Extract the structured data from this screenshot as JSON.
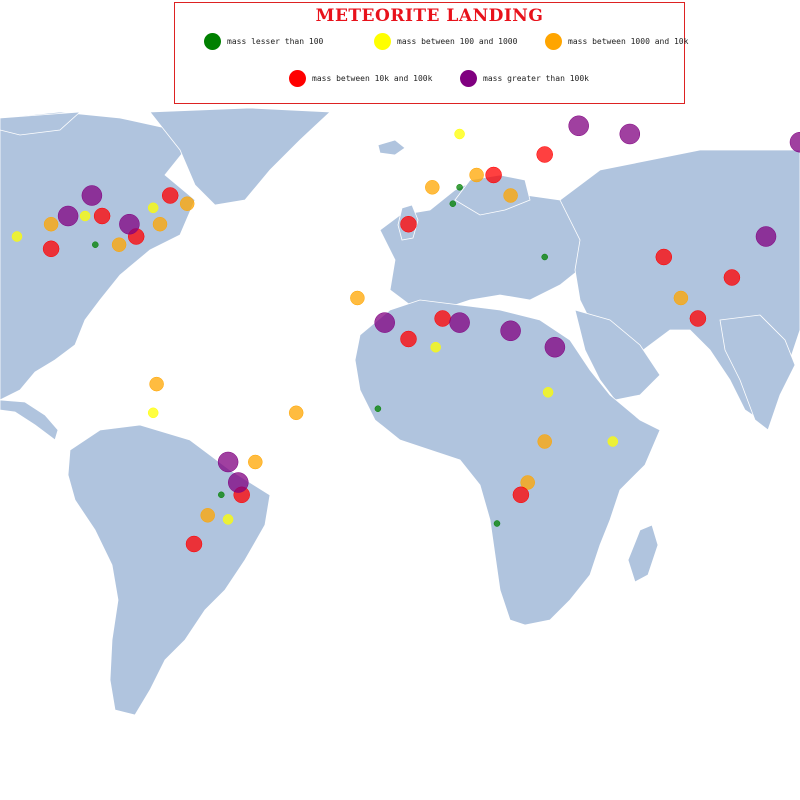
{
  "title": "METEORITE LANDING",
  "colors": {
    "land": "#b0c4de",
    "border": "#ffffff",
    "title": "#e8121b",
    "legend_border": "#dd2222"
  },
  "legend": [
    {
      "label": "mass lesser than 100",
      "color": "#008000"
    },
    {
      "label": "mass between 100 and 1000",
      "color": "#ffff00"
    },
    {
      "label": "mass between 1000 and 10k",
      "color": "#ffa500"
    },
    {
      "label": "mass between 10k and 100k",
      "color": "#ff0000"
    },
    {
      "label": "mass greater than 100k",
      "color": "#800080"
    }
  ],
  "map": {
    "projection": "mercator-like world map",
    "land_color": "#b0c4de",
    "marker_opacity": 0.75
  },
  "chart_data": {
    "type": "scatter",
    "title": "METEORITE LANDING",
    "x_unit": "longitude",
    "y_unit": "latitude",
    "category_key": "mass class",
    "series": [
      {
        "color": "#008000",
        "points": [
          [
            -97,
            33
          ],
          [
            8,
            43
          ],
          [
            21,
            -35
          ],
          [
            -14,
            -7
          ],
          [
            -60,
            -28
          ],
          [
            10,
            47
          ],
          [
            35,
            30
          ]
        ]
      },
      {
        "color": "#ffff00",
        "points": [
          [
            -100,
            40
          ],
          [
            -80,
            42
          ],
          [
            -120,
            35
          ],
          [
            10,
            60
          ],
          [
            -80,
            -8
          ],
          [
            -58,
            -34
          ],
          [
            3,
            8
          ],
          [
            55,
            -15
          ],
          [
            36,
            -3
          ]
        ]
      },
      {
        "color": "#ffa500",
        "points": [
          [
            -110,
            38
          ],
          [
            -90,
            33
          ],
          [
            -78,
            38
          ],
          [
            -70,
            43
          ],
          [
            2,
            47
          ],
          [
            15,
            50
          ],
          [
            25,
            45
          ],
          [
            30,
            -25
          ],
          [
            -50,
            -20
          ],
          [
            -64,
            -33
          ],
          [
            35,
            -15
          ],
          [
            75,
            20
          ],
          [
            -79,
            -1
          ],
          [
            -20,
            20
          ],
          [
            -38,
            -8
          ]
        ]
      },
      {
        "color": "#ff0000",
        "points": [
          [
            -95,
            40
          ],
          [
            -85,
            35
          ],
          [
            -75,
            45
          ],
          [
            -110,
            32
          ],
          [
            20,
            50
          ],
          [
            35,
            55
          ],
          [
            -5,
            38
          ],
          [
            5,
            15
          ],
          [
            -5,
            10
          ],
          [
            28,
            -28
          ],
          [
            90,
            25
          ],
          [
            80,
            15
          ],
          [
            -54,
            -28
          ],
          [
            -68,
            -40
          ],
          [
            70,
            30
          ]
        ]
      },
      {
        "color": "#800080",
        "points": [
          [
            -105,
            40
          ],
          [
            -98,
            45
          ],
          [
            -87,
            38
          ],
          [
            -12,
            14
          ],
          [
            10,
            14
          ],
          [
            25,
            12
          ],
          [
            38,
            8
          ],
          [
            100,
            35
          ],
          [
            -55,
            -25
          ],
          [
            -58,
            -20
          ],
          [
            45,
            62
          ],
          [
            60,
            60
          ],
          [
            110,
            58
          ],
          [
            135,
            5
          ]
        ]
      }
    ]
  }
}
